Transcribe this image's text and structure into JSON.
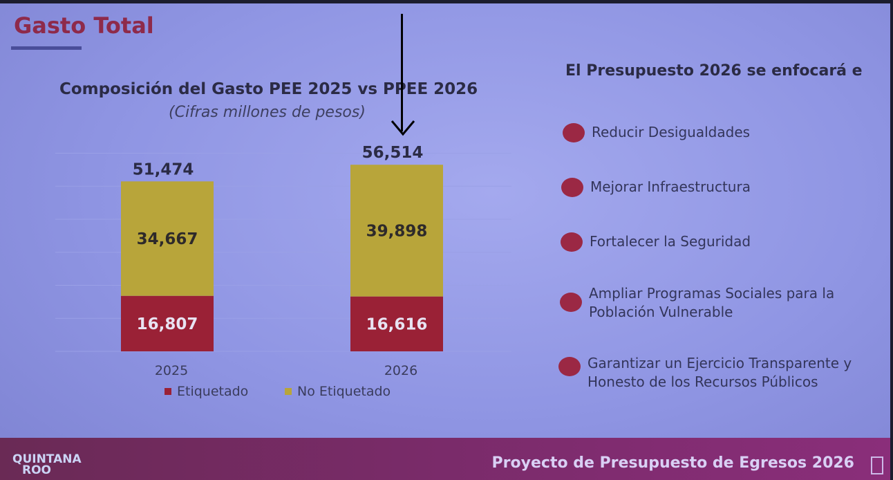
{
  "slide": {
    "title": "Gasto Total",
    "footer_text": "Proyecto de Presupuesto de Egresos 2026",
    "logo_line1": "QUINTANA",
    "logo_line2": "ROO"
  },
  "right_panel": {
    "heading": "El Presupuesto 2026 se enfocará e",
    "items": [
      {
        "label": "Reducir Desigualdades"
      },
      {
        "label": "Mejorar Infraestructura"
      },
      {
        "label": "Fortalecer la Seguridad"
      },
      {
        "label": "Ampliar Programas Sociales para la Población Vulnerable"
      },
      {
        "label": "Garantizar un Ejercicio Transparente y Honesto de los Recursos Públicos"
      }
    ]
  },
  "chart_data": {
    "type": "bar",
    "stacked": true,
    "title": "Composición del Gasto PEE 2025 vs PPEE 2026",
    "subtitle": "(Cifras millones de pesos)",
    "categories": [
      "2025",
      "2026"
    ],
    "series": [
      {
        "name": "Etiquetado",
        "values": [
          16807,
          16616
        ],
        "labels": [
          "16,807",
          "16,616"
        ],
        "color": "#9a2136"
      },
      {
        "name": "No Etiquetado",
        "values": [
          34667,
          39898
        ],
        "labels": [
          "34,667",
          "39,898"
        ],
        "color": "#b8a53a"
      }
    ],
    "totals": [
      51474,
      56514
    ],
    "total_labels": [
      "51,474",
      "56,514"
    ],
    "ylim": [
      0,
      60000
    ],
    "grid": true,
    "legend_position": "bottom"
  },
  "colors": {
    "accent": "#8e2a4a",
    "dot": "#9b2844",
    "footer": "#7a2b6a"
  }
}
